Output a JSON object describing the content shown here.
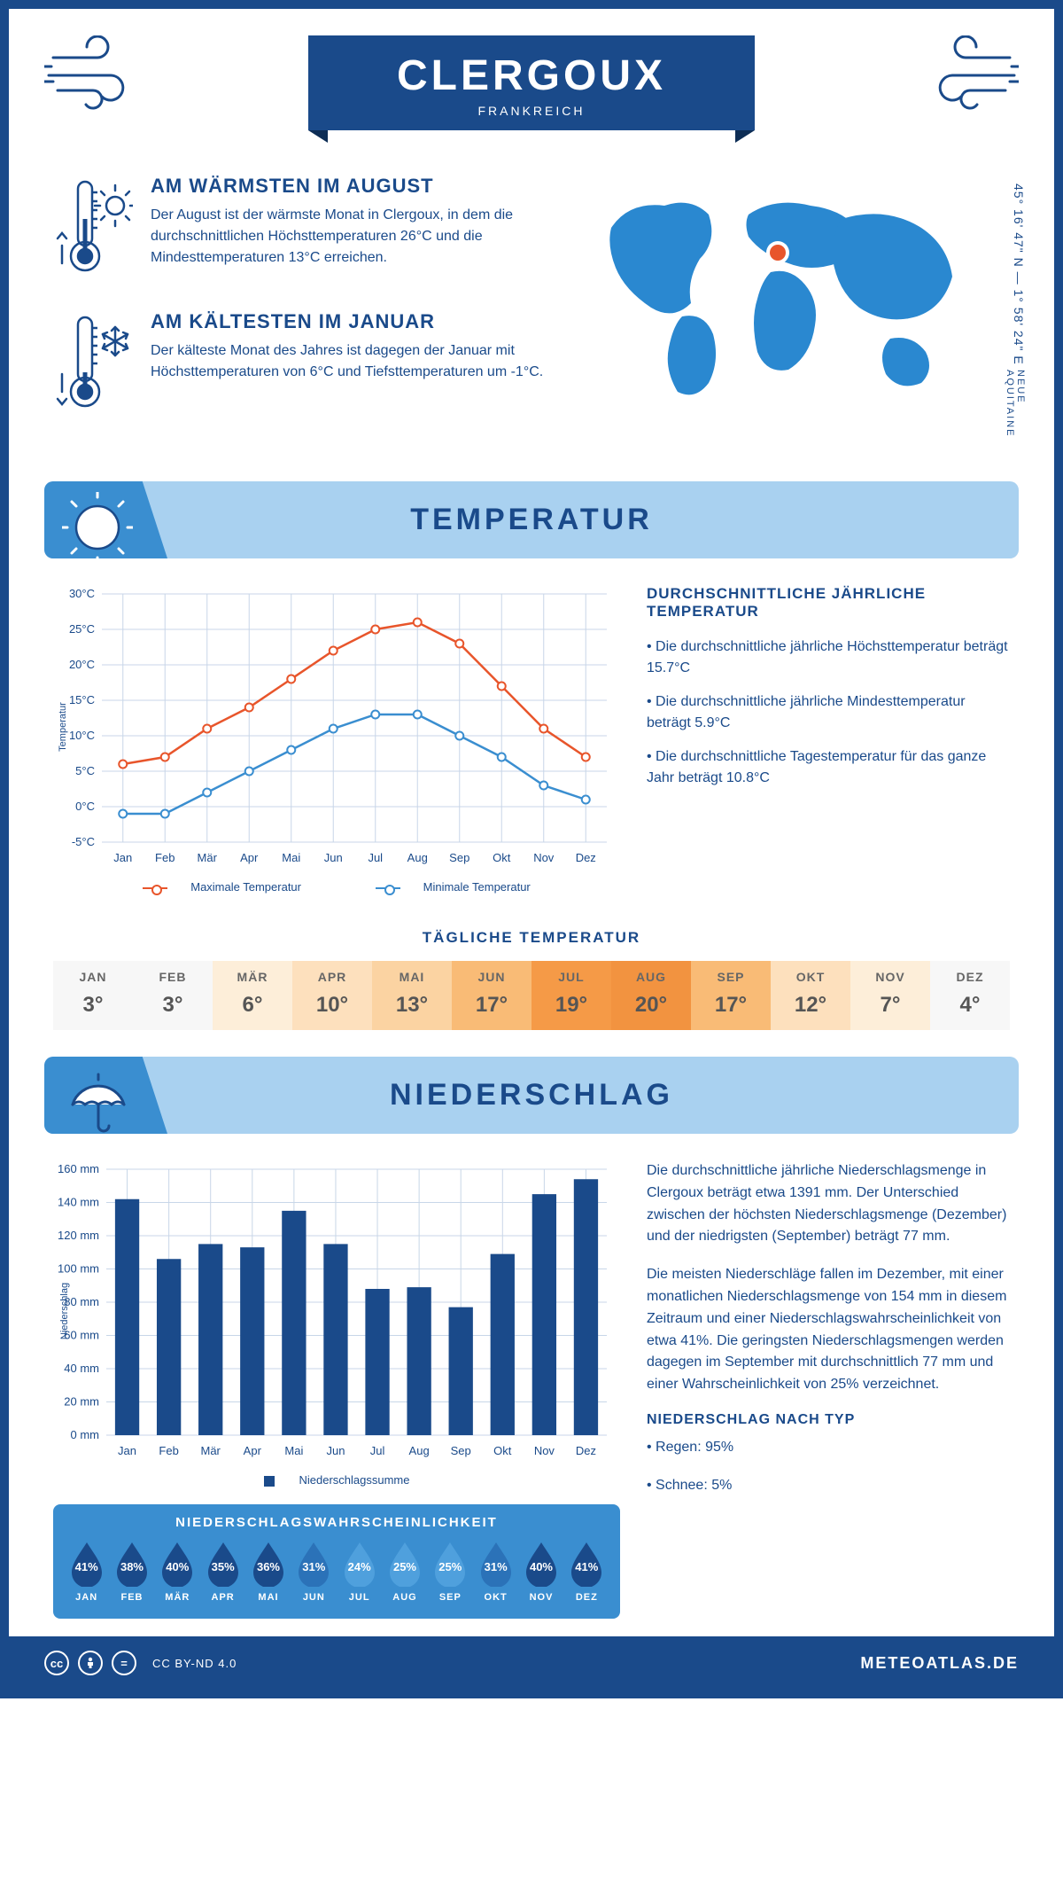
{
  "header": {
    "city": "CLERGOUX",
    "country": "FRANKREICH"
  },
  "coords": "45° 16' 47\" N — 1° 58' 24\" E",
  "region": "NEUE AQUITAINE",
  "facts": {
    "warm": {
      "title": "AM WÄRMSTEN IM AUGUST",
      "text": "Der August ist der wärmste Monat in Clergoux, in dem die durchschnittlichen Höchsttemperaturen 26°C und die Mindesttemperaturen 13°C erreichen."
    },
    "cold": {
      "title": "AM KÄLTESTEN IM JANUAR",
      "text": "Der kälteste Monat des Jahres ist dagegen der Januar mit Höchsttemperaturen von 6°C und Tiefsttemperaturen um -1°C."
    }
  },
  "sections": {
    "temp": "TEMPERATUR",
    "precip": "NIEDERSCHLAG"
  },
  "months": [
    "Jan",
    "Feb",
    "Mär",
    "Apr",
    "Mai",
    "Jun",
    "Jul",
    "Aug",
    "Sep",
    "Okt",
    "Nov",
    "Dez"
  ],
  "months_upper": [
    "JAN",
    "FEB",
    "MÄR",
    "APR",
    "MAI",
    "JUN",
    "JUL",
    "AUG",
    "SEP",
    "OKT",
    "NOV",
    "DEZ"
  ],
  "temp_chart": {
    "ylabel": "Temperatur",
    "ymin": -5,
    "ymax": 30,
    "ystep": 5,
    "max_series": [
      6,
      7,
      11,
      14,
      18,
      22,
      25,
      26,
      23,
      17,
      11,
      7
    ],
    "min_series": [
      -1,
      -1,
      2,
      5,
      8,
      11,
      13,
      13,
      10,
      7,
      3,
      1
    ],
    "max_color": "#e8552b",
    "min_color": "#3a8ed0",
    "grid_color": "#c8d6e8",
    "legend_max": "Maximale Temperatur",
    "legend_min": "Minimale Temperatur"
  },
  "temp_info": {
    "title": "DURCHSCHNITTLICHE JÄHRLICHE TEMPERATUR",
    "b1": "• Die durchschnittliche jährliche Höchsttemperatur beträgt 15.7°C",
    "b2": "• Die durchschnittliche jährliche Mindesttemperatur beträgt 5.9°C",
    "b3": "• Die durchschnittliche Tagestemperatur für das ganze Jahr beträgt 10.8°C"
  },
  "daily": {
    "title": "TÄGLICHE TEMPERATUR",
    "values": [
      "3°",
      "3°",
      "6°",
      "10°",
      "13°",
      "17°",
      "19°",
      "20°",
      "17°",
      "12°",
      "7°",
      "4°"
    ],
    "colors": [
      "#f7f7f7",
      "#f7f7f7",
      "#fdeed9",
      "#fde0bd",
      "#fbd3a2",
      "#f9bb76",
      "#f59a47",
      "#f29340",
      "#f9bb76",
      "#fde0bd",
      "#fdeed9",
      "#f7f7f7"
    ]
  },
  "precip_chart": {
    "ylabel": "Niederschlag",
    "legend": "Niederschlagssumme",
    "ymin": 0,
    "ymax": 160,
    "ystep": 20,
    "values": [
      142,
      106,
      115,
      113,
      135,
      115,
      88,
      89,
      77,
      109,
      145,
      154
    ],
    "bar_color": "#1a4a8a",
    "grid_color": "#c8d6e8"
  },
  "precip_text": {
    "p1": "Die durchschnittliche jährliche Niederschlagsmenge in Clergoux beträgt etwa 1391 mm. Der Unterschied zwischen der höchsten Niederschlagsmenge (Dezember) und der niedrigsten (September) beträgt 77 mm.",
    "p2": "Die meisten Niederschläge fallen im Dezember, mit einer monatlichen Niederschlagsmenge von 154 mm in diesem Zeitraum und einer Niederschlagswahrscheinlichkeit von etwa 41%. Die geringsten Niederschlagsmengen werden dagegen im September mit durchschnittlich 77 mm und einer Wahrscheinlichkeit von 25% verzeichnet.",
    "type_title": "NIEDERSCHLAG NACH TYP",
    "rain": "• Regen: 95%",
    "snow": "• Schnee: 5%"
  },
  "prob": {
    "title": "NIEDERSCHLAGSWAHRSCHEINLICHKEIT",
    "values": [
      "41%",
      "38%",
      "40%",
      "35%",
      "36%",
      "31%",
      "24%",
      "25%",
      "25%",
      "31%",
      "40%",
      "41%"
    ],
    "colors": [
      "#1a4a8a",
      "#1a4a8a",
      "#1a4a8a",
      "#1a4a8a",
      "#1a4a8a",
      "#2b72b8",
      "#4fa0dd",
      "#4fa0dd",
      "#4fa0dd",
      "#2b72b8",
      "#1a4a8a",
      "#1a4a8a"
    ]
  },
  "footer": {
    "license": "CC BY-ND 4.0",
    "site": "METEOATLAS.DE"
  },
  "colors": {
    "primary": "#1a4a8a",
    "light_blue": "#a9d1f0",
    "mid_blue": "#3a8ed0",
    "map_blue": "#2a88d0"
  }
}
